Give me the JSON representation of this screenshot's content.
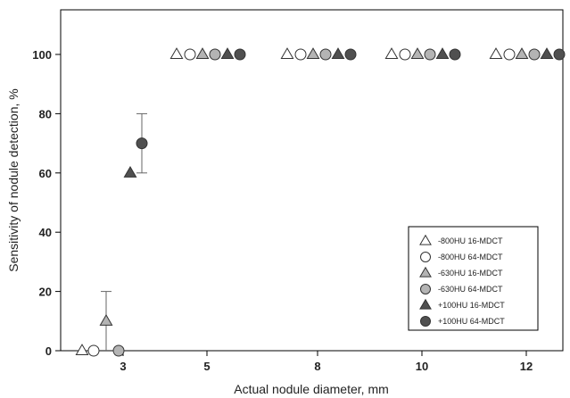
{
  "chart_data": {
    "type": "scatter",
    "xlabel": "Actual nodule diameter, mm",
    "ylabel": "Sensitivity of nodule detection, %",
    "categories": [
      "3",
      "5",
      "8",
      "10",
      "12"
    ],
    "ylim": [
      0,
      110
    ],
    "yticks": [
      "0",
      "20",
      "40",
      "60",
      "80",
      "100"
    ],
    "grid": false,
    "legend_position": "bottom-right",
    "series": [
      {
        "name": "-800HU 16-MDCT",
        "marker": "triangle",
        "fill": "#ffffff",
        "values": [
          0,
          100,
          100,
          100,
          100
        ]
      },
      {
        "name": "-800HU 64-MDCT",
        "marker": "circle",
        "fill": "#ffffff",
        "values": [
          0,
          100,
          100,
          100,
          100
        ]
      },
      {
        "name": "-630HU 16-MDCT",
        "marker": "triangle",
        "fill": "#b4b4b4",
        "values": [
          10,
          100,
          100,
          100,
          100
        ],
        "error": [
          10,
          0,
          0,
          0,
          0
        ]
      },
      {
        "name": "-630HU 64-MDCT",
        "marker": "circle",
        "fill": "#b4b4b4",
        "values": [
          0,
          100,
          100,
          100,
          100
        ]
      },
      {
        "name": "+100HU 16-MDCT",
        "marker": "triangle",
        "fill": "#505050",
        "values": [
          60,
          100,
          100,
          100,
          100
        ]
      },
      {
        "name": "+100HU 64-MDCT",
        "marker": "circle",
        "fill": "#505050",
        "values": [
          70,
          100,
          100,
          100,
          100
        ],
        "error": [
          10,
          0,
          0,
          0,
          0
        ]
      }
    ]
  }
}
